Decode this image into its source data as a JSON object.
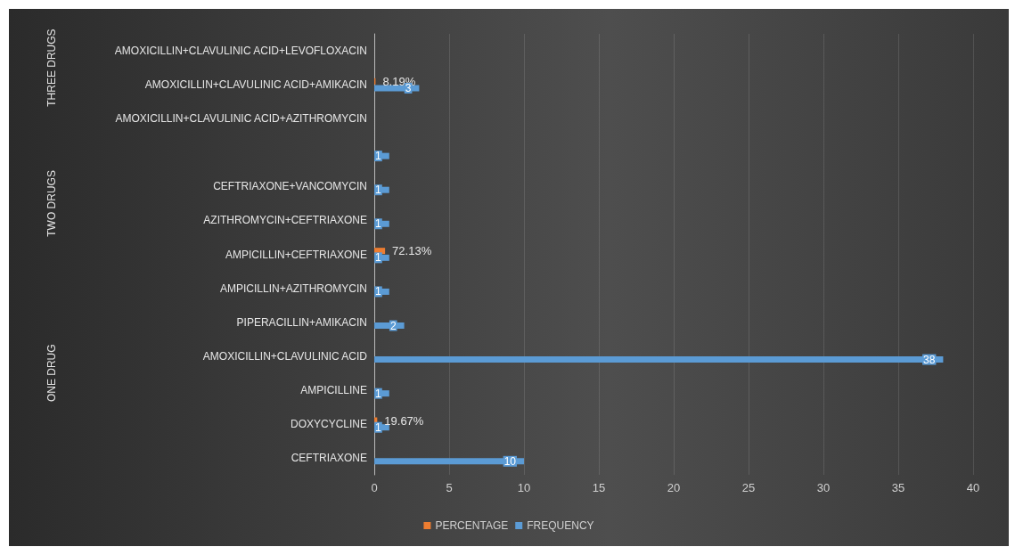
{
  "chart_data": {
    "type": "bar",
    "orientation": "horizontal",
    "categories": [
      "AMOXICILLIN+CLAVULINIC ACID+LEVOFLOXACIN",
      "AMOXICILLIN+CLAVULINIC ACID+AMIKACIN",
      "AMOXICILLIN+CLAVULINIC ACID+AZITHROMYCIN",
      null,
      "CEFTRIAXONE+VANCOMYCIN",
      "AZITHROMYCIN+CEFTRIAXONE",
      "AMPICILLIN+CEFTRIAXONE",
      "AMPICILLIN+AZITHROMYCIN",
      "PIPERACILLIN+AMIKACIN",
      "AMOXICILLIN+CLAVULINIC ACID",
      "AMPICILLINE",
      "DOXYCYCLINE",
      "CEFTRIAXONE"
    ],
    "series": [
      {
        "name": "PERCENTAGE",
        "color": "#ed7d31",
        "values": [
          null,
          0.0819,
          null,
          null,
          null,
          null,
          0.7213,
          null,
          null,
          null,
          null,
          0.1967,
          null
        ],
        "value_labels": [
          null,
          "8.19%",
          null,
          null,
          null,
          null,
          "72.13%",
          null,
          null,
          null,
          null,
          "19.67%",
          null
        ]
      },
      {
        "name": "FREQUENCY",
        "color": "#5b9bd5",
        "values": [
          null,
          3,
          null,
          1,
          1,
          1,
          1,
          1,
          2,
          38,
          1,
          1,
          10
        ],
        "value_labels": [
          null,
          "3",
          null,
          "1",
          "1",
          "1",
          "1",
          "1",
          "2",
          "38",
          "1",
          "1",
          "10"
        ]
      }
    ],
    "xlim": [
      0,
      40
    ],
    "xticks": [
      0,
      5,
      10,
      15,
      20,
      25,
      30,
      35,
      40
    ],
    "grid": "x",
    "legend": "bottom",
    "annotations": [
      "THREE DRUGS",
      "TWO DRUGS",
      "ONE DRUG"
    ]
  }
}
